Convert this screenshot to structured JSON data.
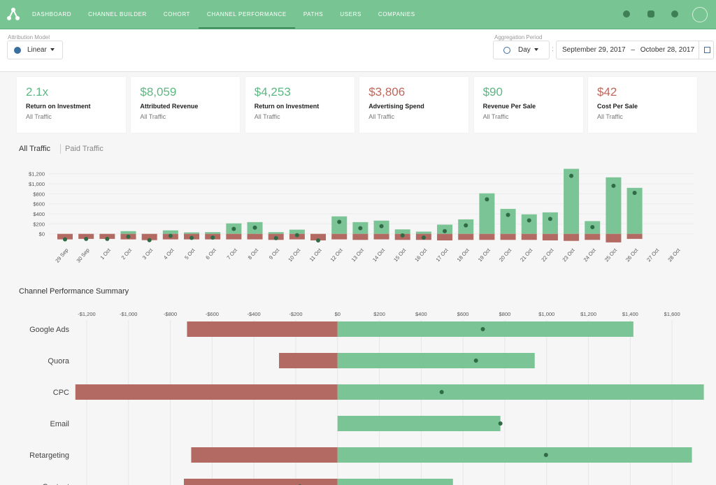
{
  "nav": {
    "items": [
      "DASHBOARD",
      "CHANNEL BUILDER",
      "COHORT",
      "CHANNEL PERFORMANCE",
      "PATHS",
      "USERS",
      "COMPANIES"
    ],
    "active": 3
  },
  "toolbar": {
    "attribution_label": "Attribution Model",
    "attribution_value": "Linear",
    "aggregation_label": "Aggregation Period",
    "aggregation_value": "Day",
    "separator": ":",
    "start_date": "September 29, 2017",
    "date_dash": "–",
    "end_date": "October 28, 2017"
  },
  "kpis": [
    {
      "value": "2.1x",
      "label": "Return on Investment",
      "sub": "All Traffic",
      "color": "#5cb882"
    },
    {
      "value": "$8,059",
      "label": "Attributed Revenue",
      "sub": "All Traffic",
      "color": "#5cb882"
    },
    {
      "value": "$4,253",
      "label": "Return on Investment",
      "sub": "All Traffic",
      "color": "#5cb882"
    },
    {
      "value": "$3,806",
      "label": "Advertising Spend",
      "sub": "All Traffic",
      "color": "#c0675c"
    },
    {
      "value": "$90",
      "label": "Revenue Per Sale",
      "sub": "All Traffic",
      "color": "#5cb882"
    },
    {
      "value": "$42",
      "label": "Cost Per Sale",
      "sub": "All Traffic",
      "color": "#c0675c"
    }
  ],
  "traffic_tabs": [
    "All Traffic",
    "Paid Traffic"
  ],
  "chart_data": [
    {
      "type": "bar",
      "orientation": "vertical",
      "categories": [
        "29 Sep",
        "30 Sep",
        "1 Oct",
        "2 Oct",
        "3 Oct",
        "4 Oct",
        "5 Oct",
        "6 Oct",
        "7 Oct",
        "8 Oct",
        "9 Oct",
        "10 Oct",
        "11 Oct",
        "12 Oct",
        "13 Oct",
        "14 Oct",
        "15 Oct",
        "16 Oct",
        "17 Oct",
        "18 Oct",
        "19 Oct",
        "20 Oct",
        "21 Oct",
        "22 Oct",
        "23 Oct",
        "24 Oct",
        "25 Oct",
        "26 Oct",
        "27 Oct",
        "28 Oct"
      ],
      "series": [
        {
          "mark": "bar",
          "color": "#7bc495",
          "values": [
            0,
            0,
            0,
            55,
            0,
            70,
            30,
            35,
            210,
            235,
            35,
            85,
            0,
            350,
            235,
            265,
            90,
            45,
            185,
            290,
            810,
            500,
            390,
            430,
            1300,
            255,
            1130,
            920,
            null,
            null
          ]
        },
        {
          "mark": "bar",
          "color": "#b36a62",
          "values": [
            -110,
            -100,
            -100,
            -110,
            -125,
            -110,
            -110,
            -110,
            -110,
            -110,
            -120,
            -110,
            -130,
            -110,
            -120,
            -110,
            -120,
            -120,
            -130,
            -120,
            -120,
            -120,
            -120,
            -130,
            -140,
            -120,
            -170,
            -100,
            null,
            null
          ]
        },
        {
          "mark": "dot",
          "color": "#2f6b45",
          "values": [
            -110,
            -100,
            -100,
            -55,
            -125,
            -40,
            -80,
            -75,
            100,
            125,
            -85,
            -25,
            -130,
            240,
            115,
            155,
            -30,
            -75,
            55,
            170,
            690,
            380,
            270,
            300,
            1160,
            135,
            960,
            820,
            null,
            null
          ]
        }
      ],
      "ylim": [
        -200,
        1350
      ],
      "yticks": [
        {
          "value": 0,
          "label": "$0"
        },
        {
          "value": 200,
          "label": "$200"
        },
        {
          "value": 400,
          "label": "$400"
        },
        {
          "value": 600,
          "label": "$600"
        },
        {
          "value": 800,
          "label": "$800"
        },
        {
          "value": 1000,
          "label": "$1,000"
        },
        {
          "value": 1200,
          "label": "$1,200"
        }
      ],
      "grid": true
    },
    {
      "type": "bar",
      "orientation": "horizontal",
      "title": "Channel Performance Summary",
      "categories": [
        "Google Ads",
        "Quora",
        "CPC",
        "Email",
        "Retargeting",
        "Content"
      ],
      "series": [
        {
          "mark": "bar",
          "color": "#b36a62",
          "values": [
            -720,
            -280,
            -1254,
            0,
            -700,
            -735
          ]
        },
        {
          "mark": "bar",
          "color": "#7bc495",
          "values": [
            1415,
            943,
            1752,
            779,
            1695,
            552
          ]
        },
        {
          "mark": "dot",
          "color": "#2f6b45",
          "values": [
            695,
            662,
            498,
            779,
            997,
            -180
          ]
        }
      ],
      "xlim": [
        -1260,
        1760
      ],
      "xticks": [
        {
          "value": -1200,
          "label": "-$1,200"
        },
        {
          "value": -1000,
          "label": "-$1,000"
        },
        {
          "value": -800,
          "label": "-$800"
        },
        {
          "value": -600,
          "label": "-$600"
        },
        {
          "value": -400,
          "label": "-$400"
        },
        {
          "value": -200,
          "label": "-$200"
        },
        {
          "value": 0,
          "label": "$0"
        },
        {
          "value": 200,
          "label": "$200"
        },
        {
          "value": 400,
          "label": "$400"
        },
        {
          "value": 600,
          "label": "$600"
        },
        {
          "value": 800,
          "label": "$800"
        },
        {
          "value": 1000,
          "label": "$1,000"
        },
        {
          "value": 1200,
          "label": "$1,200"
        },
        {
          "value": 1400,
          "label": "$1,400"
        },
        {
          "value": 1600,
          "label": "$1,600"
        }
      ],
      "grid": true
    }
  ]
}
